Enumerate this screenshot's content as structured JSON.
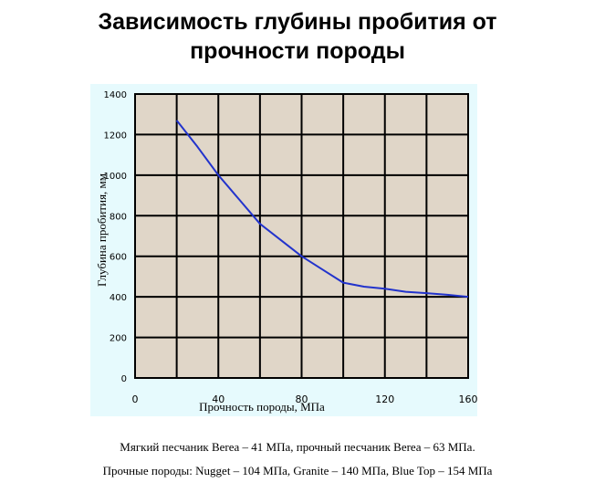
{
  "title_lines": [
    "Зависимость глубины пробития от",
    "прочности породы"
  ],
  "chart_data": {
    "type": "line",
    "xlabel": "Прочность породы, МПа",
    "ylabel": "Глубина пробития, мм",
    "xlim": [
      0,
      160
    ],
    "ylim": [
      0,
      1400
    ],
    "x_ticks": [
      "0",
      "40",
      "80",
      "120",
      "160"
    ],
    "y_ticks": [
      "0",
      "200",
      "400",
      "600",
      "800",
      "1000",
      "1200",
      "1400"
    ],
    "grid": true,
    "series": [
      {
        "color": "#2233cc",
        "x": [
          20,
          30,
          40,
          50,
          60,
          70,
          80,
          90,
          100,
          110,
          120,
          130,
          140,
          150,
          160
        ],
        "y": [
          1270,
          1140,
          1000,
          880,
          760,
          680,
          600,
          535,
          470,
          450,
          440,
          425,
          418,
          410,
          400
        ]
      }
    ],
    "plot_background": "#e0d6c8",
    "frame_background": "#e6fafd"
  },
  "notes": [
    "Мягкий песчаник Berea – 41 МПа, прочный песчаник Berea – 63 МПа.",
    "Прочные породы: Nugget – 104 МПа, Granite – 140 МПа, Blue Top – 154 МПа"
  ]
}
